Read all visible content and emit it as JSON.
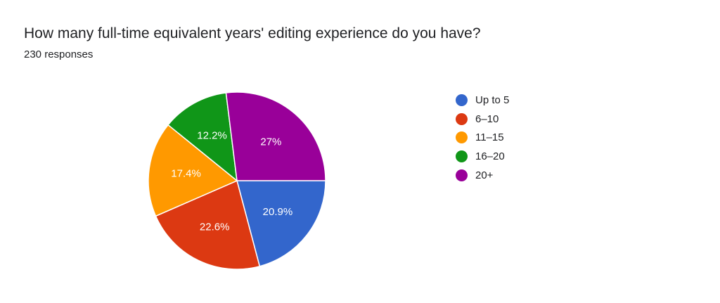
{
  "header": {
    "title": "How many full-time equivalent years' editing experience do you have?",
    "subtitle": "230 responses"
  },
  "chart_data": {
    "type": "pie",
    "categories": [
      "Up to 5",
      "6–10",
      "11–15",
      "16–20",
      "20+"
    ],
    "values": [
      20.9,
      22.6,
      17.4,
      12.2,
      27
    ],
    "labels": [
      "20.9%",
      "22.6%",
      "17.4%",
      "12.2%",
      "27%"
    ],
    "colors": [
      "#3366cc",
      "#dc3912",
      "#ff9900",
      "#109618",
      "#990099"
    ],
    "legend_position": "right"
  }
}
